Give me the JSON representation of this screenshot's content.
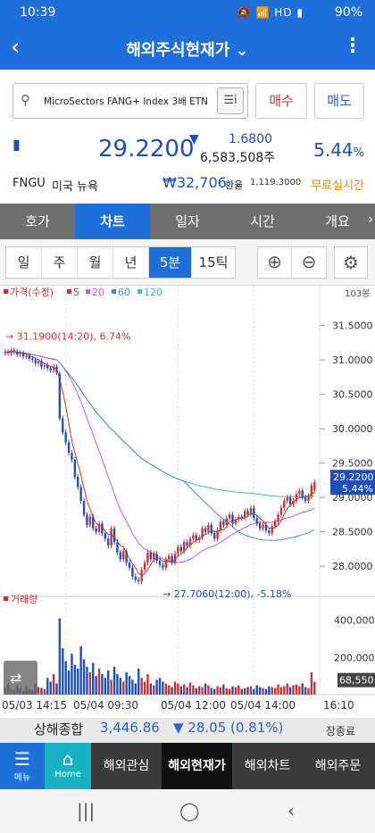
{
  "status_bar": {
    "time": "10:39",
    "icons": "🔕 📶 HD ▮",
    "battery": "90%"
  },
  "app_bar": {
    "title": "해외주식현재가 ⌄"
  },
  "search": {
    "value": "MicroSectors FANG+ Index 3배 ETN"
  },
  "actions": {
    "buy": "매수",
    "sell": "매도"
  },
  "quote": {
    "price": "29.2200",
    "direction_symbol": "▼",
    "change": "1.6800",
    "volume": "6,583,508주",
    "change_pct": "5.44",
    "pct_sign": "%",
    "color_down": "#1e4fb7"
  },
  "info": {
    "ticker": "FNGU",
    "market": "미국 뉴욕",
    "krw_price": "₩32,706",
    "fx_label": "환율",
    "fx_value": "1,119.3000",
    "realtime_label": "무료실시간"
  },
  "tabs": [
    "호가",
    "차트",
    "일자",
    "시간",
    "개요"
  ],
  "active_tab": "차트",
  "periods": [
    "일",
    "주",
    "월",
    "년",
    "5분",
    "15틱"
  ],
  "active_period": "5분",
  "chart_data": {
    "type": "line",
    "legend": [
      {
        "name": "가격(수정)",
        "color": "#d32f2f"
      },
      {
        "name": "5",
        "color": "#d32f2f"
      },
      {
        "name": "20",
        "color": "#c95bd6"
      },
      {
        "name": "60",
        "color": "#3b8fd9"
      },
      {
        "name": "120",
        "color": "#3cc0a0"
      }
    ],
    "y_axis_top_label": "103봉",
    "ylim": [
      27.6,
      31.95
    ],
    "yticks": [
      "31.5000",
      "31.0000",
      "30.5000",
      "30.0000",
      "29.5000",
      "29.0000",
      "28.5000",
      "28.0000"
    ],
    "ytick_values": [
      31.5,
      31.0,
      30.5,
      30.0,
      29.5,
      29.0,
      28.5,
      28.0
    ],
    "x_labels": [
      "05/03 14:15",
      "05/04 09:30",
      "05/04 12:00",
      "05/04 14:00",
      "16:10"
    ],
    "high_annotation": "31.1900(14:20), 6.74%",
    "low_annotation": "27.7060(12:00), -5.18%",
    "last_price_label": "29.2200",
    "last_pct_label": "5.44%",
    "close": [
      31.12,
      31.1,
      31.14,
      31.12,
      31.08,
      31.1,
      31.05,
      31.06,
      31.02,
      31.0,
      30.95,
      30.98,
      30.9,
      30.92,
      30.88,
      30.85,
      30.9,
      30.82,
      30.15,
      29.95,
      29.8,
      29.65,
      29.55,
      29.3,
      29.15,
      28.95,
      28.75,
      28.6,
      28.72,
      28.55,
      28.5,
      28.62,
      28.48,
      28.4,
      28.3,
      28.55,
      28.35,
      28.2,
      28.1,
      28.22,
      28.05,
      27.98,
      27.85,
      27.8,
      27.78,
      27.95,
      28.05,
      28.2,
      28.1,
      28.18,
      28.08,
      28.02,
      27.98,
      28.1,
      28.15,
      28.05,
      28.18,
      28.28,
      28.22,
      28.35,
      28.3,
      28.4,
      28.45,
      28.38,
      28.42,
      28.55,
      28.5,
      28.6,
      28.48,
      28.4,
      28.52,
      28.65,
      28.6,
      28.7,
      28.75,
      28.62,
      28.68,
      28.72,
      28.7,
      28.8,
      28.75,
      28.85,
      28.7,
      28.62,
      28.55,
      28.6,
      28.52,
      28.48,
      28.58,
      28.65,
      28.75,
      28.85,
      28.95,
      29.0,
      28.9,
      28.95,
      29.05,
      29.1,
      29.0,
      28.95,
      29.02,
      29.18,
      29.22
    ],
    "open": [
      31.1,
      31.12,
      31.1,
      31.14,
      31.12,
      31.08,
      31.1,
      31.05,
      31.06,
      31.02,
      31.0,
      30.95,
      30.98,
      30.9,
      30.92,
      30.88,
      30.85,
      30.9,
      30.8,
      30.15,
      29.95,
      29.8,
      29.65,
      29.55,
      29.3,
      29.15,
      28.95,
      28.75,
      28.6,
      28.72,
      28.55,
      28.5,
      28.62,
      28.48,
      28.4,
      28.3,
      28.55,
      28.35,
      28.2,
      28.1,
      28.22,
      28.05,
      27.98,
      27.85,
      27.8,
      27.78,
      27.95,
      28.05,
      28.2,
      28.1,
      28.18,
      28.08,
      28.02,
      27.98,
      28.1,
      28.15,
      28.05,
      28.18,
      28.28,
      28.22,
      28.35,
      28.3,
      28.4,
      28.45,
      28.38,
      28.42,
      28.55,
      28.5,
      28.6,
      28.48,
      28.4,
      28.52,
      28.65,
      28.6,
      28.7,
      28.75,
      28.62,
      28.68,
      28.72,
      28.7,
      28.8,
      28.75,
      28.85,
      28.7,
      28.62,
      28.55,
      28.6,
      28.52,
      28.48,
      28.58,
      28.65,
      28.75,
      28.85,
      28.95,
      29.0,
      28.9,
      28.95,
      29.05,
      29.1,
      29.0,
      28.95,
      29.02,
      29.1
    ],
    "volume_label": "거래량",
    "volume_yticks": [
      "400,000",
      "200,000"
    ],
    "volume_ytick_values": [
      400000,
      200000
    ],
    "volume_ylim": [
      0,
      480000
    ],
    "volume_last_label": "68,550",
    "volumes": [
      40000,
      60000,
      30000,
      25000,
      50000,
      35000,
      20000,
      45000,
      30000,
      25000,
      60000,
      40000,
      35000,
      30000,
      90000,
      70000,
      110000,
      60000,
      410000,
      250000,
      180000,
      130000,
      220000,
      160000,
      140000,
      260000,
      190000,
      150000,
      120000,
      170000,
      100000,
      140000,
      110000,
      90000,
      130000,
      80000,
      150000,
      110000,
      90000,
      70000,
      120000,
      100000,
      80000,
      60000,
      140000,
      90000,
      70000,
      110000,
      60000,
      50000,
      80000,
      90000,
      70000,
      60000,
      50000,
      40000,
      70000,
      60000,
      45000,
      55000,
      40000,
      65000,
      50000,
      35000,
      45000,
      40000,
      60000,
      50000,
      35000,
      30000,
      45000,
      40000,
      55000,
      35000,
      30000,
      45000,
      40000,
      50000,
      30000,
      35000,
      40000,
      45000,
      30000,
      50000,
      40000,
      35000,
      30000,
      45000,
      40000,
      35000,
      55000,
      40000,
      45000,
      60000,
      40000,
      50000,
      55000,
      45000,
      60000,
      40000,
      35000,
      120000,
      68550
    ]
  },
  "market_strip": {
    "index_name": "상해종합",
    "index_value": "3,446.86",
    "index_change": "▼ 28.05 (0.81%)",
    "status": "장종료"
  },
  "bottom_nav": {
    "menu_label": "메뉴",
    "home_label": "Home",
    "items": [
      "해외관심",
      "해외현재가",
      "해외차트",
      "해외주문"
    ],
    "active": "해외현재가"
  }
}
